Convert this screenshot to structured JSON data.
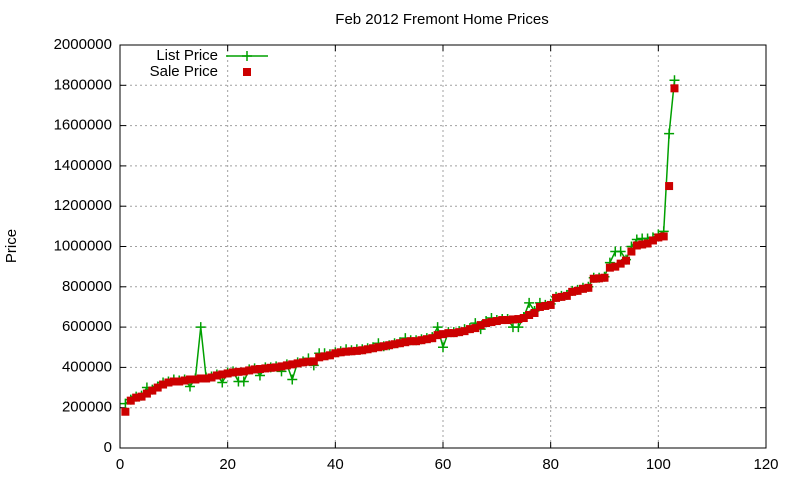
{
  "chart_data": {
    "type": "line",
    "title": "Feb 2012 Fremont Home Prices",
    "y_label": "Price",
    "x": [
      1,
      2,
      3,
      4,
      5,
      6,
      7,
      8,
      9,
      10,
      11,
      12,
      13,
      14,
      15,
      16,
      17,
      18,
      19,
      20,
      21,
      22,
      23,
      24,
      25,
      26,
      27,
      28,
      29,
      30,
      31,
      32,
      33,
      34,
      35,
      36,
      37,
      38,
      39,
      40,
      41,
      42,
      43,
      44,
      45,
      46,
      47,
      48,
      49,
      50,
      51,
      52,
      53,
      54,
      55,
      56,
      57,
      58,
      59,
      60,
      61,
      62,
      63,
      64,
      65,
      66,
      67,
      68,
      69,
      70,
      71,
      72,
      73,
      74,
      75,
      76,
      77,
      78,
      79,
      80,
      81,
      82,
      83,
      84,
      85,
      86,
      87,
      88,
      89,
      90,
      91,
      92,
      93,
      94,
      95,
      96,
      97,
      98,
      99,
      100,
      101,
      102,
      103
    ],
    "series": [
      {
        "name": "List Price",
        "color": "#00a000",
        "values": [
          220000,
          240000,
          255000,
          260000,
          300000,
          290000,
          305000,
          325000,
          330000,
          340000,
          335000,
          340000,
          305000,
          345000,
          600000,
          350000,
          355000,
          365000,
          325000,
          375000,
          380000,
          330000,
          330000,
          390000,
          395000,
          360000,
          400000,
          400000,
          405000,
          380000,
          415000,
          340000,
          425000,
          430000,
          445000,
          410000,
          470000,
          470000,
          465000,
          475000,
          480000,
          490000,
          485000,
          490000,
          490000,
          495000,
          500000,
          520000,
          505000,
          510000,
          520000,
          525000,
          545000,
          535000,
          535000,
          540000,
          545000,
          550000,
          600000,
          500000,
          575000,
          575000,
          580000,
          590000,
          595000,
          620000,
          590000,
          630000,
          645000,
          635000,
          640000,
          640000,
          600000,
          600000,
          650000,
          720000,
          680000,
          720000,
          710000,
          715000,
          750000,
          755000,
          760000,
          780000,
          785000,
          795000,
          800000,
          845000,
          845000,
          850000,
          920000,
          975000,
          975000,
          935000,
          1000000,
          1035000,
          1040000,
          1040000,
          1045000,
          1060000,
          1075000,
          1560000,
          1825000
        ]
      },
      {
        "name": "Sale Price",
        "color": "#cc0000",
        "values": [
          180000,
          235000,
          250000,
          255000,
          270000,
          285000,
          300000,
          315000,
          325000,
          330000,
          330000,
          335000,
          340000,
          340000,
          345000,
          345000,
          350000,
          360000,
          365000,
          370000,
          375000,
          378000,
          380000,
          385000,
          390000,
          392000,
          395000,
          398000,
          400000,
          405000,
          410000,
          415000,
          420000,
          425000,
          428000,
          430000,
          450000,
          455000,
          460000,
          470000,
          475000,
          478000,
          480000,
          482000,
          485000,
          490000,
          495000,
          500000,
          505000,
          510000,
          515000,
          520000,
          525000,
          530000,
          530000,
          535000,
          540000,
          545000,
          560000,
          565000,
          570000,
          570000,
          575000,
          580000,
          590000,
          595000,
          610000,
          620000,
          625000,
          630000,
          635000,
          635000,
          638000,
          640000,
          645000,
          660000,
          670000,
          700000,
          705000,
          710000,
          745000,
          750000,
          755000,
          775000,
          780000,
          790000,
          795000,
          840000,
          842000,
          845000,
          895000,
          900000,
          915000,
          930000,
          975000,
          1005000,
          1010000,
          1015000,
          1030000,
          1045000,
          1050000,
          1300000,
          1785000
        ]
      }
    ],
    "xlim": [
      0,
      120
    ],
    "xticks": [
      0,
      20,
      40,
      60,
      80,
      100,
      120
    ],
    "ylim": [
      0,
      2000000
    ],
    "yticks": [
      0,
      200000,
      400000,
      600000,
      800000,
      1000000,
      1200000,
      1400000,
      1600000,
      1800000,
      2000000
    ],
    "grid": true,
    "legend": "top-left"
  }
}
